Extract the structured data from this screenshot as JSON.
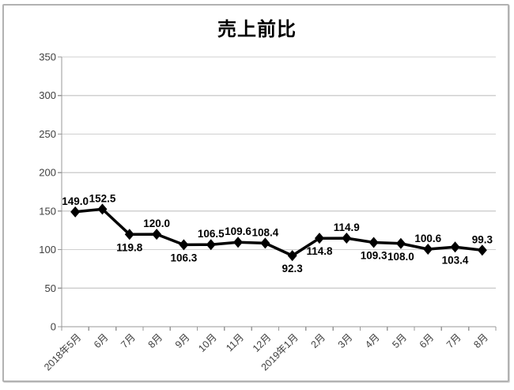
{
  "title": "売上前比",
  "chart_data": {
    "type": "line",
    "title": "売上前比",
    "categories": [
      "2018年5月",
      "6月",
      "7月",
      "8月",
      "9月",
      "10月",
      "11月",
      "12月",
      "2019年1月",
      "2月",
      "3月",
      "4月",
      "5月",
      "6月",
      "7月",
      "8月"
    ],
    "series": [
      {
        "name": "売上前比",
        "values": [
          149.0,
          152.5,
          119.8,
          120.0,
          106.3,
          106.5,
          109.6,
          108.4,
          92.3,
          114.8,
          114.9,
          109.3,
          108.0,
          100.6,
          103.4,
          99.3
        ],
        "labels": [
          "149.0",
          "152.5",
          "119.8",
          "120.0",
          "106.3",
          "106.5",
          "109.6",
          "108.4",
          "92.3",
          "114.8",
          "114.9",
          "109.3",
          "108.0",
          "100.6",
          "103.4",
          "99.3"
        ],
        "label_positions": [
          "above",
          "above",
          "below",
          "above",
          "below",
          "above",
          "above",
          "above",
          "below",
          "below",
          "above",
          "below",
          "below",
          "above",
          "below",
          "above"
        ],
        "color": "#000000",
        "marker": "diamond"
      }
    ],
    "xlabel": "",
    "ylabel": "",
    "ylim": [
      0,
      350
    ],
    "yticks": [
      0,
      50,
      100,
      150,
      200,
      250,
      300,
      350
    ],
    "grid": true,
    "legend_position": "none",
    "x_label_rotation_deg": -45,
    "colors": {
      "gridline": "#d0d0d0",
      "axis": "#999999",
      "axis_text": "#404040",
      "line": "#000000",
      "marker": "#000000",
      "data_label": "#000000",
      "frame_border": "#b2b2b2",
      "background": "#ffffff"
    }
  }
}
